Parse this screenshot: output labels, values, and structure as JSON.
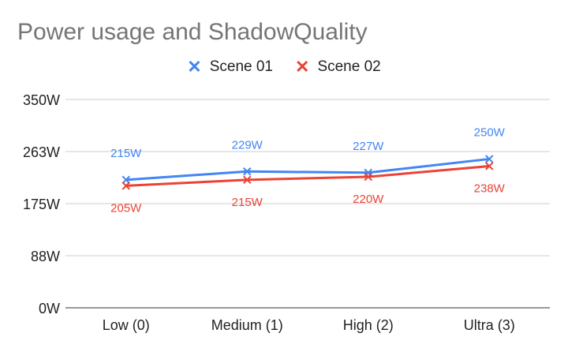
{
  "chart_data": {
    "type": "line",
    "title": "Power usage and ShadowQuality",
    "categories": [
      "Low (0)",
      "Medium (1)",
      "High (2)",
      "Ultra (3)"
    ],
    "yticks": [
      "0W",
      "88W",
      "175W",
      "263W",
      "350W"
    ],
    "ylim": [
      0,
      350
    ],
    "grid": true,
    "legend_position": "top",
    "series": [
      {
        "name": "Scene 01",
        "color": "#4285f4",
        "values": [
          215,
          229,
          227,
          250
        ],
        "labels": [
          "215W",
          "229W",
          "227W",
          "250W"
        ]
      },
      {
        "name": "Scene 02",
        "color": "#ea4335",
        "values": [
          205,
          215,
          220,
          238
        ],
        "labels": [
          "205W",
          "215W",
          "220W",
          "238W"
        ]
      }
    ]
  }
}
